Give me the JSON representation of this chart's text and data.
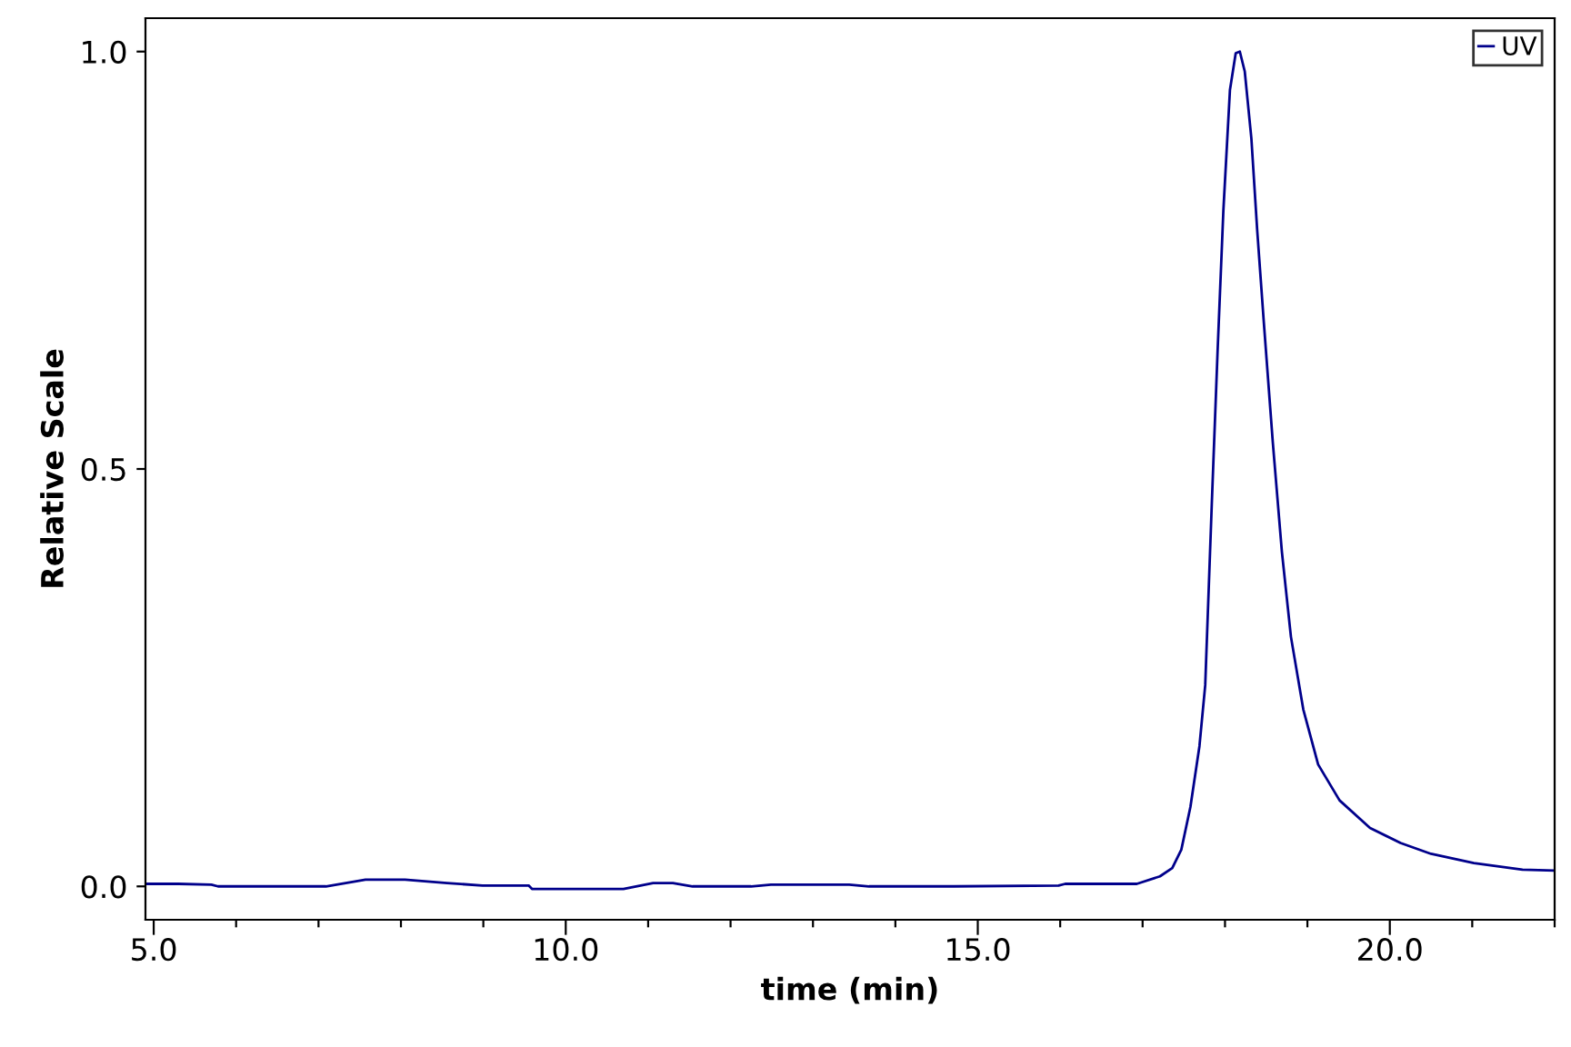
{
  "chart_data": {
    "type": "line",
    "xlabel": "time (min)",
    "ylabel": "Relative Scale",
    "xlim": [
      4.9,
      22.0
    ],
    "ylim": [
      -0.04,
      1.04
    ],
    "xticks": [
      {
        "value": 5,
        "label": "5.0"
      },
      {
        "value": 6,
        "label": null
      },
      {
        "value": 7,
        "label": null
      },
      {
        "value": 8,
        "label": null
      },
      {
        "value": 9,
        "label": null
      },
      {
        "value": 10,
        "label": "10.0"
      },
      {
        "value": 11,
        "label": null
      },
      {
        "value": 12,
        "label": null
      },
      {
        "value": 13,
        "label": null
      },
      {
        "value": 14,
        "label": null
      },
      {
        "value": 15,
        "label": "15.0"
      },
      {
        "value": 16,
        "label": null
      },
      {
        "value": 17,
        "label": null
      },
      {
        "value": 18,
        "label": null
      },
      {
        "value": 19,
        "label": null
      },
      {
        "value": 20,
        "label": "20.0"
      },
      {
        "value": 21,
        "label": null
      },
      {
        "value": 22,
        "label": null
      }
    ],
    "yticks": [
      {
        "value": 0,
        "label": "0.0"
      },
      0.5,
      {
        "value": 1,
        "label": "1.0"
      }
    ],
    "grid": false,
    "legend": "top right",
    "marker": "none",
    "line_style": "solid",
    "series": [
      {
        "name": "UV",
        "color": "#00008b",
        "x": [
          4.9,
          5.3,
          5.7,
          5.78,
          7.09,
          7.57,
          8.05,
          8.56,
          8.99,
          9.55,
          9.59,
          10.7,
          11.06,
          11.3,
          11.54,
          12.25,
          12.49,
          13.44,
          13.68,
          14.71,
          15.98,
          16.06,
          16.93,
          17.21,
          17.36,
          17.47,
          17.58,
          17.69,
          17.76,
          17.8,
          17.84,
          17.91,
          17.98,
          18.06,
          18.13,
          18.18,
          18.24,
          18.32,
          18.39,
          18.47,
          18.58,
          18.69,
          18.8,
          18.95,
          19.13,
          19.39,
          19.76,
          20.13,
          20.5,
          21.02,
          21.61,
          22.0
        ],
        "values": [
          0.003,
          0.003,
          0.002,
          0.0,
          0.0,
          0.008,
          0.008,
          0.004,
          0.001,
          0.001,
          -0.003,
          -0.003,
          0.004,
          0.004,
          0.0,
          0.0,
          0.002,
          0.002,
          0.0,
          0.0,
          0.001,
          0.003,
          0.003,
          0.012,
          0.022,
          0.044,
          0.095,
          0.168,
          0.241,
          0.35,
          0.459,
          0.641,
          0.809,
          0.954,
          0.998,
          1.0,
          0.976,
          0.896,
          0.787,
          0.677,
          0.532,
          0.401,
          0.299,
          0.212,
          0.146,
          0.103,
          0.07,
          0.052,
          0.039,
          0.028,
          0.02,
          0.019
        ]
      }
    ]
  }
}
